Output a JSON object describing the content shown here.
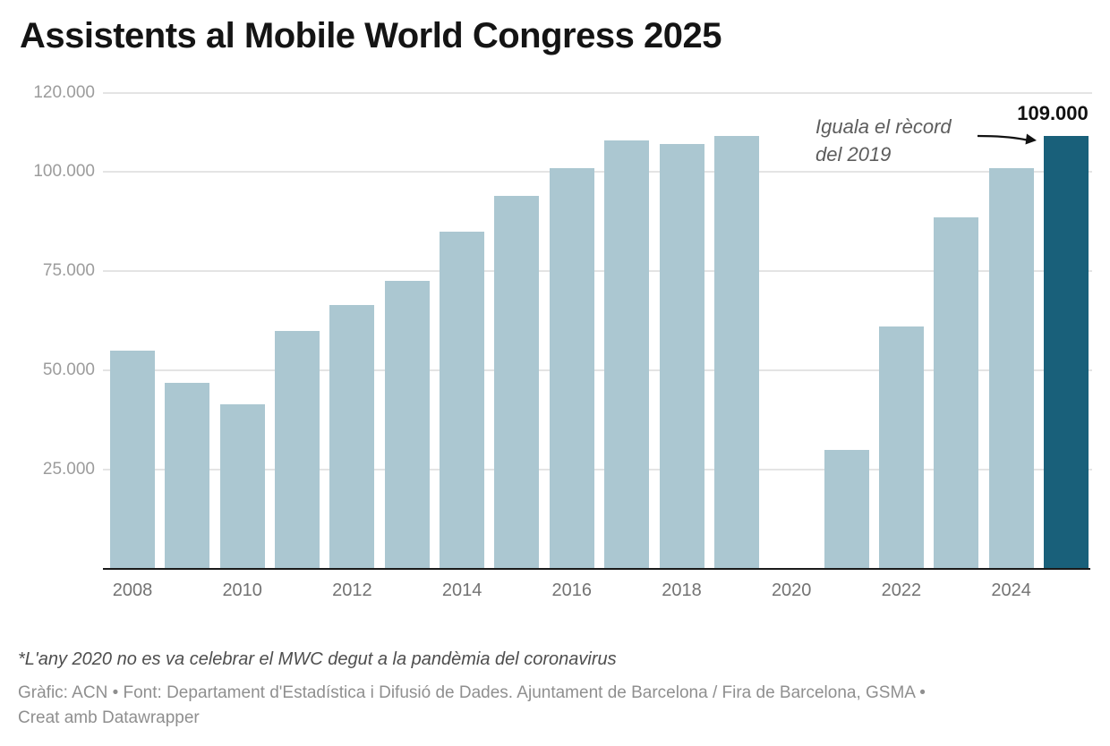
{
  "header": {
    "title": "Assistents al Mobile World Congress 2025"
  },
  "annotation": {
    "line1": "Iguala el rècord",
    "line2": "del 2019"
  },
  "highlight_label": "109.000",
  "footer": {
    "footnote": "*L'any 2020 no es va celebrar el MWC degut a la pandèmia del coronavirus",
    "credit_line1": "Gràfic: ACN • Font: Departament d'Estadística i Difusió de Dades. Ajuntament de Barcelona / Fira de Barcelona, GSMA •",
    "credit_line2": "Creat amb Datawrapper"
  },
  "colors": {
    "background": "#ffffff",
    "bar": "#abc7d1",
    "bar_highlight": "#19607a",
    "gridline": "#e4e4e4",
    "axis_line": "#1a1a1a",
    "y_label": "#9c9c9c",
    "x_label": "#737373",
    "title": "#141414",
    "annotation": "#5d5d5d",
    "value_label": "#111111",
    "footnote": "#4e4e4e",
    "credits": "#8f8f8f"
  },
  "chart_data": {
    "type": "bar",
    "title": "Assistents al Mobile World Congress 2025",
    "categories": [
      "2008",
      "2009",
      "2010",
      "2011",
      "2012",
      "2013",
      "2014",
      "2015",
      "2016",
      "2017",
      "2018",
      "2019",
      "2020",
      "2021",
      "2022",
      "2023",
      "2024",
      "2025"
    ],
    "values": [
      55000,
      47000,
      41500,
      60000,
      66500,
      72500,
      85000,
      94000,
      101000,
      108000,
      107000,
      109000,
      0,
      30000,
      61000,
      88500,
      101000,
      109000
    ],
    "highlight_category": "2025",
    "highlight_value_label": "109.000",
    "annotation_text": "Iguala el rècord del 2019",
    "xlabel": "",
    "ylabel": "",
    "ylim": [
      0,
      120000
    ],
    "y_ticks": [
      25000,
      50000,
      75000,
      100000,
      120000
    ],
    "y_tick_labels": [
      "25.000",
      "50.000",
      "75.000",
      "100.000",
      "120.000"
    ],
    "x_tick_labels": [
      "2008",
      "2010",
      "2012",
      "2014",
      "2016",
      "2018",
      "2020",
      "2022",
      "2024"
    ],
    "grid": true,
    "legend": "none"
  }
}
